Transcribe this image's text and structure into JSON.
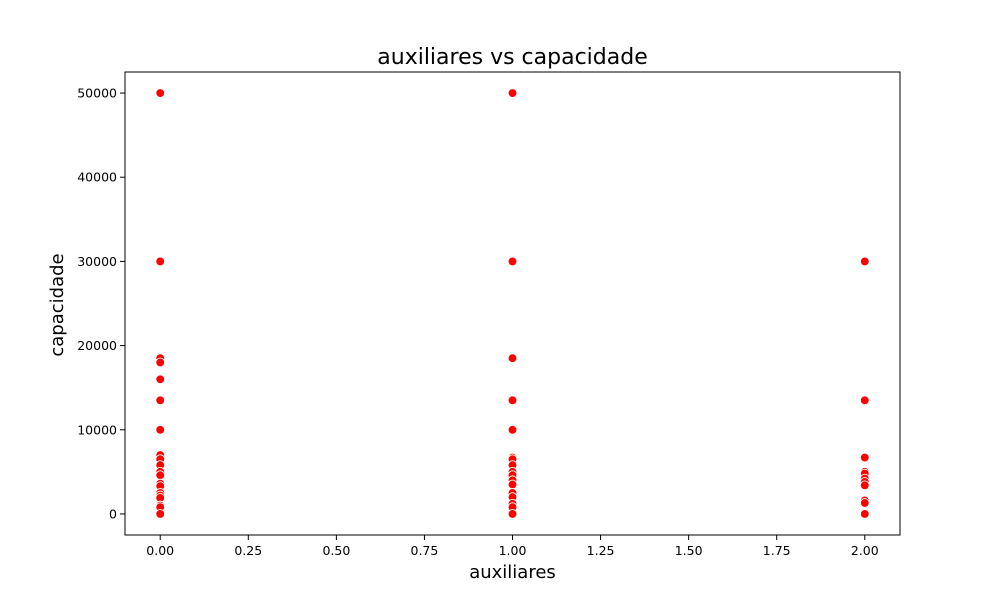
{
  "chart_data": {
    "type": "scatter",
    "title": "auxiliares vs capacidade",
    "xlabel": "auxiliares",
    "ylabel": "capacidade",
    "xlim": [
      -0.1,
      2.1
    ],
    "ylim": [
      -2500,
      52500
    ],
    "xticks": [
      0.0,
      0.25,
      0.5,
      0.75,
      1.0,
      1.25,
      1.5,
      1.75,
      2.0
    ],
    "xtick_labels": [
      "0.00",
      "0.25",
      "0.50",
      "0.75",
      "1.00",
      "1.25",
      "1.50",
      "1.75",
      "2.00"
    ],
    "yticks": [
      0,
      10000,
      20000,
      30000,
      40000,
      50000
    ],
    "ytick_labels": [
      "0",
      "10000",
      "20000",
      "30000",
      "40000",
      "50000"
    ],
    "grid": false,
    "marker_color": "#ff0000",
    "series": [
      {
        "points": [
          {
            "x": 0,
            "y": 50000
          },
          {
            "x": 0,
            "y": 30000
          },
          {
            "x": 0,
            "y": 18500
          },
          {
            "x": 0,
            "y": 18000
          },
          {
            "x": 0,
            "y": 16000
          },
          {
            "x": 0,
            "y": 13500
          },
          {
            "x": 0,
            "y": 10000
          },
          {
            "x": 0,
            "y": 7000
          },
          {
            "x": 0,
            "y": 6500
          },
          {
            "x": 0,
            "y": 5800
          },
          {
            "x": 0,
            "y": 5000
          },
          {
            "x": 0,
            "y": 4600
          },
          {
            "x": 0,
            "y": 3600
          },
          {
            "x": 0,
            "y": 3300
          },
          {
            "x": 0,
            "y": 2500
          },
          {
            "x": 0,
            "y": 2200
          },
          {
            "x": 0,
            "y": 1900
          },
          {
            "x": 0,
            "y": 1000
          },
          {
            "x": 0,
            "y": 800
          },
          {
            "x": 0,
            "y": 0
          },
          {
            "x": 1,
            "y": 50000
          },
          {
            "x": 1,
            "y": 30000
          },
          {
            "x": 1,
            "y": 18500
          },
          {
            "x": 1,
            "y": 13500
          },
          {
            "x": 1,
            "y": 10000
          },
          {
            "x": 1,
            "y": 6700
          },
          {
            "x": 1,
            "y": 6500
          },
          {
            "x": 1,
            "y": 5800
          },
          {
            "x": 1,
            "y": 5000
          },
          {
            "x": 1,
            "y": 4600
          },
          {
            "x": 1,
            "y": 4000
          },
          {
            "x": 1,
            "y": 3500
          },
          {
            "x": 1,
            "y": 2500
          },
          {
            "x": 1,
            "y": 2000
          },
          {
            "x": 1,
            "y": 1200
          },
          {
            "x": 1,
            "y": 800
          },
          {
            "x": 1,
            "y": 0
          },
          {
            "x": 2,
            "y": 30000
          },
          {
            "x": 2,
            "y": 13500
          },
          {
            "x": 2,
            "y": 6700
          },
          {
            "x": 2,
            "y": 5000
          },
          {
            "x": 2,
            "y": 4800
          },
          {
            "x": 2,
            "y": 4200
          },
          {
            "x": 2,
            "y": 3800
          },
          {
            "x": 2,
            "y": 3400
          },
          {
            "x": 2,
            "y": 1600
          },
          {
            "x": 2,
            "y": 1300
          },
          {
            "x": 2,
            "y": 0
          }
        ]
      }
    ]
  }
}
